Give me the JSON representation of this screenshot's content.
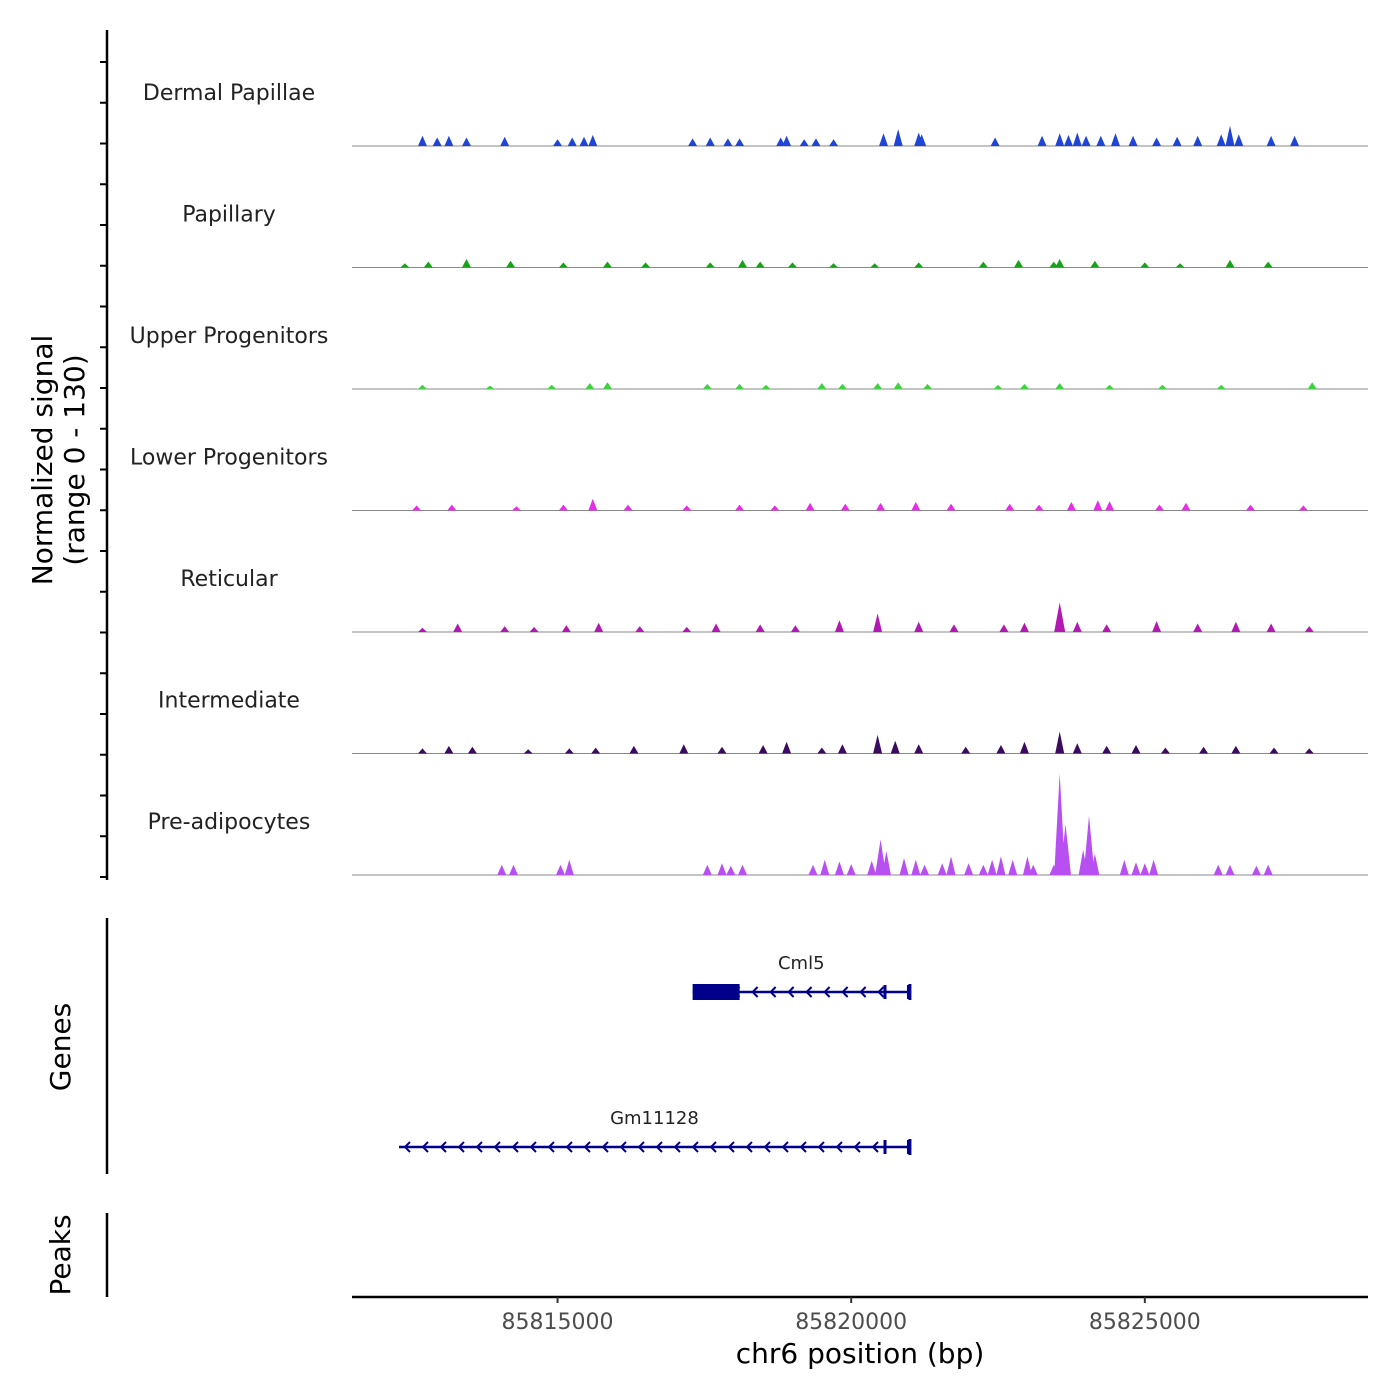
{
  "chart_data": {
    "type": "area",
    "title": "",
    "ylabel_line1": "Normalized signal",
    "ylabel_line2": "(range 0 - 130)",
    "ylim": [
      0,
      130
    ],
    "xlabel": "chr6 position (bp)",
    "xlim": [
      85811500,
      85828800
    ],
    "xticks": [
      {
        "value": 85815000,
        "label": "85815000"
      },
      {
        "value": 85820000,
        "label": "85820000"
      },
      {
        "value": 85825000,
        "label": "85825000"
      }
    ],
    "series": [
      {
        "name": "Dermal Papillae",
        "color": "#1f45d6",
        "peaks": [
          [
            85812700,
            12
          ],
          [
            85812950,
            10
          ],
          [
            85813150,
            12
          ],
          [
            85813450,
            10
          ],
          [
            85814100,
            11
          ],
          [
            85815000,
            8
          ],
          [
            85815250,
            10
          ],
          [
            85815450,
            11
          ],
          [
            85815600,
            13
          ],
          [
            85817300,
            9
          ],
          [
            85817600,
            10
          ],
          [
            85817900,
            9
          ],
          [
            85818100,
            9
          ],
          [
            85818800,
            10
          ],
          [
            85818900,
            12
          ],
          [
            85819200,
            8
          ],
          [
            85819400,
            9
          ],
          [
            85819700,
            8
          ],
          [
            85820550,
            15
          ],
          [
            85820800,
            20
          ],
          [
            85821150,
            16
          ],
          [
            85821200,
            14
          ],
          [
            85822450,
            10
          ],
          [
            85823250,
            12
          ],
          [
            85823550,
            15
          ],
          [
            85823700,
            13
          ],
          [
            85823850,
            16
          ],
          [
            85824000,
            12
          ],
          [
            85824250,
            12
          ],
          [
            85824500,
            15
          ],
          [
            85824800,
            12
          ],
          [
            85825200,
            10
          ],
          [
            85825550,
            11
          ],
          [
            85825900,
            12
          ],
          [
            85826300,
            14
          ],
          [
            85826450,
            24
          ],
          [
            85826600,
            14
          ],
          [
            85827150,
            12
          ],
          [
            85827550,
            12
          ]
        ]
      },
      {
        "name": "Papillary",
        "color": "#17a317",
        "peaks": [
          [
            85812400,
            5
          ],
          [
            85812800,
            7
          ],
          [
            85813450,
            10
          ],
          [
            85814200,
            8
          ],
          [
            85815100,
            6
          ],
          [
            85815850,
            7
          ],
          [
            85816500,
            6
          ],
          [
            85817600,
            6
          ],
          [
            85818150,
            9
          ],
          [
            85818450,
            7
          ],
          [
            85819000,
            6
          ],
          [
            85819700,
            5
          ],
          [
            85820400,
            5
          ],
          [
            85821150,
            6
          ],
          [
            85822250,
            7
          ],
          [
            85822850,
            9
          ],
          [
            85823450,
            7
          ],
          [
            85823550,
            10
          ],
          [
            85824150,
            8
          ],
          [
            85825000,
            6
          ],
          [
            85825600,
            5
          ],
          [
            85826450,
            9
          ],
          [
            85827100,
            7
          ]
        ]
      },
      {
        "name": "Upper Progenitors",
        "color": "#3fd140",
        "peaks": [
          [
            85812700,
            5
          ],
          [
            85813850,
            4
          ],
          [
            85814900,
            5
          ],
          [
            85815550,
            7
          ],
          [
            85815850,
            8
          ],
          [
            85817550,
            6
          ],
          [
            85818100,
            6
          ],
          [
            85818550,
            5
          ],
          [
            85819500,
            7
          ],
          [
            85819850,
            6
          ],
          [
            85820450,
            7
          ],
          [
            85820800,
            8
          ],
          [
            85821300,
            6
          ],
          [
            85822500,
            5
          ],
          [
            85822950,
            6
          ],
          [
            85823550,
            7
          ],
          [
            85824400,
            5
          ],
          [
            85825300,
            5
          ],
          [
            85826300,
            5
          ],
          [
            85827850,
            8
          ]
        ]
      },
      {
        "name": "Lower Progenitors",
        "color": "#e62ee6",
        "peaks": [
          [
            85812600,
            6
          ],
          [
            85813200,
            7
          ],
          [
            85814300,
            5
          ],
          [
            85815100,
            7
          ],
          [
            85815600,
            14
          ],
          [
            85816200,
            7
          ],
          [
            85817200,
            6
          ],
          [
            85818100,
            7
          ],
          [
            85818700,
            6
          ],
          [
            85819300,
            9
          ],
          [
            85819900,
            8
          ],
          [
            85820500,
            9
          ],
          [
            85821100,
            10
          ],
          [
            85821700,
            8
          ],
          [
            85822700,
            8
          ],
          [
            85823200,
            7
          ],
          [
            85823750,
            10
          ],
          [
            85824200,
            12
          ],
          [
            85824400,
            11
          ],
          [
            85825250,
            7
          ],
          [
            85825700,
            9
          ],
          [
            85826800,
            7
          ],
          [
            85827700,
            6
          ]
        ]
      },
      {
        "name": "Reticular",
        "color": "#b219b2",
        "peaks": [
          [
            85812700,
            5
          ],
          [
            85813300,
            10
          ],
          [
            85814100,
            7
          ],
          [
            85814600,
            6
          ],
          [
            85815150,
            8
          ],
          [
            85815700,
            11
          ],
          [
            85816400,
            7
          ],
          [
            85817200,
            6
          ],
          [
            85817700,
            10
          ],
          [
            85818450,
            9
          ],
          [
            85819050,
            8
          ],
          [
            85819800,
            14
          ],
          [
            85820450,
            22
          ],
          [
            85821150,
            12
          ],
          [
            85821750,
            9
          ],
          [
            85822600,
            9
          ],
          [
            85822950,
            11
          ],
          [
            85823550,
            35
          ],
          [
            85823850,
            12
          ],
          [
            85824350,
            9
          ],
          [
            85825200,
            13
          ],
          [
            85825900,
            10
          ],
          [
            85826550,
            12
          ],
          [
            85827150,
            10
          ],
          [
            85827800,
            7
          ]
        ]
      },
      {
        "name": "Intermediate",
        "color": "#3a0b5e",
        "peaks": [
          [
            85812700,
            6
          ],
          [
            85813150,
            9
          ],
          [
            85813550,
            8
          ],
          [
            85814500,
            5
          ],
          [
            85815200,
            6
          ],
          [
            85815650,
            7
          ],
          [
            85816300,
            9
          ],
          [
            85817150,
            11
          ],
          [
            85817800,
            8
          ],
          [
            85818500,
            10
          ],
          [
            85818900,
            14
          ],
          [
            85819500,
            7
          ],
          [
            85819850,
            11
          ],
          [
            85820450,
            22
          ],
          [
            85820750,
            15
          ],
          [
            85821150,
            11
          ],
          [
            85821950,
            8
          ],
          [
            85822550,
            10
          ],
          [
            85822950,
            14
          ],
          [
            85823550,
            26
          ],
          [
            85823850,
            12
          ],
          [
            85824350,
            9
          ],
          [
            85824850,
            10
          ],
          [
            85825350,
            7
          ],
          [
            85826000,
            8
          ],
          [
            85826550,
            9
          ],
          [
            85827200,
            7
          ],
          [
            85827800,
            6
          ]
        ]
      },
      {
        "name": "Pre-adipocytes",
        "color": "#b84ff0",
        "peaks": [
          [
            85814050,
            12
          ],
          [
            85814250,
            12
          ],
          [
            85815050,
            12
          ],
          [
            85815200,
            18
          ],
          [
            85817550,
            12
          ],
          [
            85817800,
            14
          ],
          [
            85817950,
            11
          ],
          [
            85818150,
            12
          ],
          [
            85819350,
            12
          ],
          [
            85819550,
            18
          ],
          [
            85819800,
            16
          ],
          [
            85820000,
            13
          ],
          [
            85820350,
            17
          ],
          [
            85820500,
            42
          ],
          [
            85820600,
            28
          ],
          [
            85820900,
            20
          ],
          [
            85821100,
            18
          ],
          [
            85821250,
            12
          ],
          [
            85821550,
            14
          ],
          [
            85821700,
            22
          ],
          [
            85822000,
            14
          ],
          [
            85822250,
            12
          ],
          [
            85822400,
            18
          ],
          [
            85822550,
            22
          ],
          [
            85822750,
            18
          ],
          [
            85823000,
            22
          ],
          [
            85823100,
            12
          ],
          [
            85823450,
            12
          ],
          [
            85823550,
            120
          ],
          [
            85823650,
            60
          ],
          [
            85823950,
            30
          ],
          [
            85824050,
            70
          ],
          [
            85824150,
            25
          ],
          [
            85824650,
            18
          ],
          [
            85824850,
            15
          ],
          [
            85825000,
            14
          ],
          [
            85825150,
            18
          ],
          [
            85826250,
            12
          ],
          [
            85826450,
            12
          ],
          [
            85826900,
            11
          ],
          [
            85827100,
            12
          ]
        ]
      }
    ],
    "genes": [
      {
        "name": "Cml5",
        "start": 85817300,
        "end": 85821000,
        "strand": "-",
        "thick_start": 85817300,
        "thick_end": 85818100,
        "exons": [
          [
            85817300,
            85818100
          ],
          [
            85820550,
            85820600
          ],
          [
            85820950,
            85821000
          ]
        ]
      },
      {
        "name": "Gm11128",
        "start": 85812300,
        "end": 85821000,
        "strand": "-",
        "thick_start": 85820550,
        "thick_end": 85820550,
        "exons": [
          [
            85820550,
            85820600
          ],
          [
            85820950,
            85821000
          ]
        ]
      }
    ],
    "panel_labels": {
      "genes": "Genes",
      "peaks": "Peaks"
    },
    "peaks_track": []
  }
}
